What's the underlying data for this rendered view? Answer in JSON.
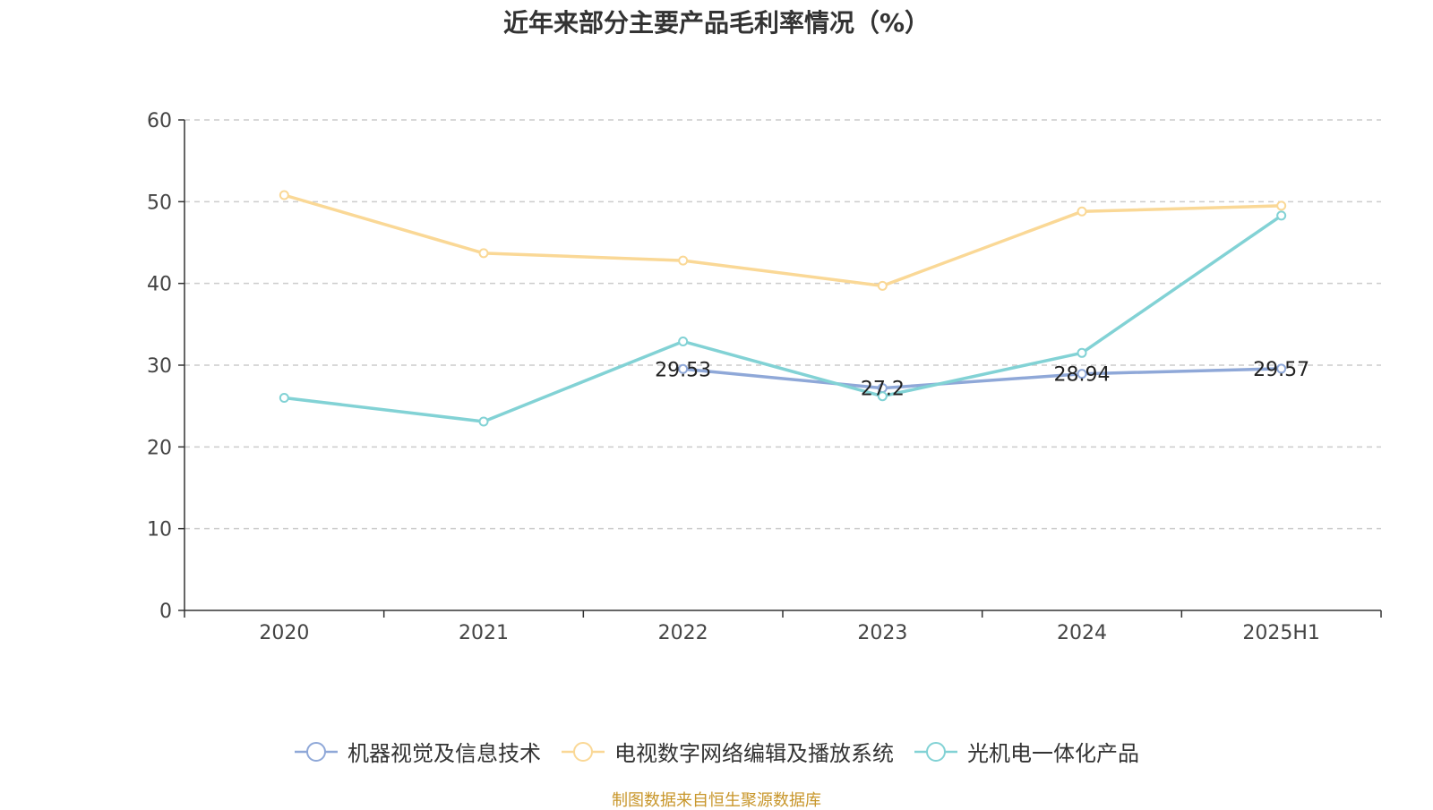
{
  "chart_data": {
    "type": "line",
    "title": "近年来部分主要产品毛利率情况（%）",
    "categories": [
      "2020",
      "2021",
      "2022",
      "2023",
      "2024",
      "2025H1"
    ],
    "ylim": [
      0,
      60
    ],
    "yticks": [
      "0",
      "10",
      "20",
      "30",
      "40",
      "50",
      "60"
    ],
    "grid": true,
    "legend_position": "bottom",
    "series": [
      {
        "name": "机器视觉及信息技术",
        "color": "#8fa8d8",
        "values": [
          null,
          null,
          29.53,
          27.2,
          28.94,
          29.57
        ],
        "labels": [
          null,
          null,
          "29.53",
          "27.2",
          "28.94",
          "29.57"
        ]
      },
      {
        "name": "电视数字网络编辑及播放系统",
        "color": "#fad896",
        "values": [
          50.8,
          43.7,
          42.8,
          39.7,
          48.8,
          49.5
        ],
        "labels": [
          null,
          null,
          null,
          null,
          null,
          null
        ]
      },
      {
        "name": "光机电一体化产品",
        "color": "#82d2d5",
        "values": [
          26.0,
          23.1,
          32.9,
          26.2,
          31.5,
          48.3
        ],
        "labels": [
          null,
          null,
          null,
          null,
          null,
          null
        ]
      }
    ]
  },
  "source_note": "制图数据来自恒生聚源数据库"
}
